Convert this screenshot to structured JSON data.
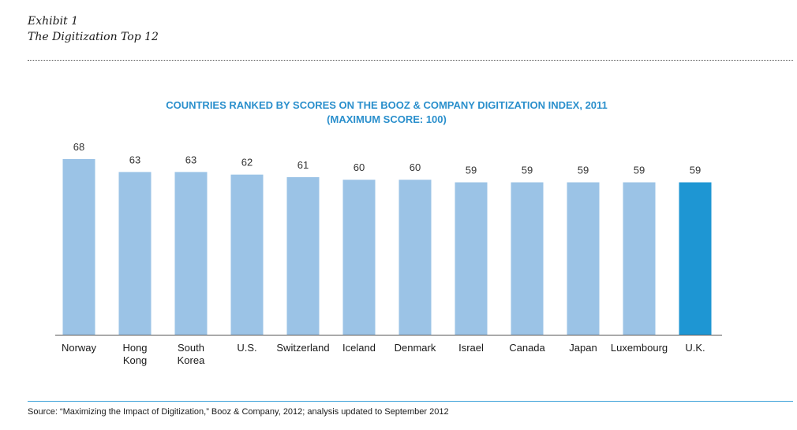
{
  "exhibit": {
    "label": "Exhibit 1",
    "title": "The Digitization Top 12"
  },
  "chart_data": {
    "type": "bar",
    "title_line1": "COUNTRIES RANKED BY SCORES ON THE BOOZ & COMPANY DIGITIZATION INDEX, 2011",
    "title_line2": "(MAXIMUM SCORE: 100)",
    "categories": [
      [
        "Norway"
      ],
      [
        "Hong",
        "Kong"
      ],
      [
        "South",
        "Korea"
      ],
      [
        "U.S."
      ],
      [
        "Switzerland"
      ],
      [
        "Iceland"
      ],
      [
        "Denmark"
      ],
      [
        "Israel"
      ],
      [
        "Canada"
      ],
      [
        "Japan"
      ],
      [
        "Luxembourg"
      ],
      [
        "U.K."
      ]
    ],
    "values": [
      68,
      63,
      63,
      62,
      61,
      60,
      60,
      59,
      59,
      59,
      59,
      59
    ],
    "highlight_index": 11,
    "bar_color": "#9bc3e6",
    "highlight_color": "#1e96d3",
    "ylim": [
      0,
      68
    ],
    "grid": false,
    "legend": "none"
  },
  "source": "Source: “Maximizing the Impact of Digitization,” Booz & Company, 2012; analysis updated to September 2012"
}
